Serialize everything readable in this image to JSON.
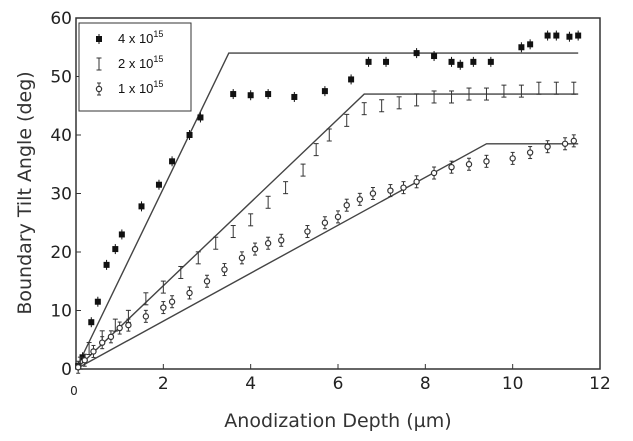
{
  "chart_data": {
    "type": "scatter",
    "title": "",
    "xlabel": "Anodization Depth (µm)",
    "ylabel": "Boundary Tilt Angle (deg)",
    "xlim": [
      0,
      12
    ],
    "ylim": [
      0,
      60
    ],
    "x_ticks": [
      "0",
      "2",
      "4",
      "6",
      "8",
      "10",
      "12"
    ],
    "y_ticks": [
      "0",
      "10",
      "20",
      "30",
      "40",
      "50",
      "60"
    ],
    "grid": false,
    "legend_position": "top-left",
    "series": [
      {
        "name_base": "4 x 10",
        "name_exp": "15",
        "marker": "filled-square",
        "color": "#111111",
        "points": [
          [
            0.05,
            0.5
          ],
          [
            0.15,
            2.0
          ],
          [
            0.35,
            8.0
          ],
          [
            0.5,
            11.5
          ],
          [
            0.7,
            17.8
          ],
          [
            0.9,
            20.5
          ],
          [
            1.05,
            23.0
          ],
          [
            1.5,
            27.8
          ],
          [
            1.9,
            31.5
          ],
          [
            2.2,
            35.5
          ],
          [
            2.6,
            40.0
          ],
          [
            2.85,
            43.0
          ],
          [
            3.6,
            47.0
          ],
          [
            4.0,
            46.8
          ],
          [
            4.4,
            47.0
          ],
          [
            5.0,
            46.5
          ],
          [
            5.7,
            47.5
          ],
          [
            6.3,
            49.5
          ],
          [
            6.7,
            52.5
          ],
          [
            7.1,
            52.5
          ],
          [
            7.8,
            54.0
          ],
          [
            8.2,
            53.5
          ],
          [
            8.6,
            52.5
          ],
          [
            8.8,
            52.0
          ],
          [
            9.1,
            52.5
          ],
          [
            9.5,
            52.5
          ],
          [
            10.2,
            55.0
          ],
          [
            10.4,
            55.5
          ],
          [
            10.8,
            57.0
          ],
          [
            11.0,
            57.0
          ],
          [
            11.3,
            56.8
          ],
          [
            11.5,
            57.0
          ]
        ],
        "fit_line": [
          [
            0,
            0
          ],
          [
            3.5,
            54
          ],
          [
            11.5,
            54
          ]
        ]
      },
      {
        "name_base": "2 x 10",
        "name_exp": "15",
        "marker": "error-bar",
        "color": "#333333",
        "points": [
          [
            0.1,
            1.0
          ],
          [
            0.3,
            3.5
          ],
          [
            0.6,
            5.5
          ],
          [
            0.9,
            7.5
          ],
          [
            1.2,
            9.0
          ],
          [
            1.6,
            12.0
          ],
          [
            2.0,
            14.0
          ],
          [
            2.4,
            16.5
          ],
          [
            2.8,
            19.0
          ],
          [
            3.2,
            21.5
          ],
          [
            3.6,
            23.5
          ],
          [
            4.0,
            25.5
          ],
          [
            4.4,
            28.5
          ],
          [
            4.8,
            31.0
          ],
          [
            5.2,
            34.0
          ],
          [
            5.5,
            37.5
          ],
          [
            5.8,
            40.0
          ],
          [
            6.2,
            42.5
          ],
          [
            6.6,
            44.5
          ],
          [
            7.0,
            45.0
          ],
          [
            7.4,
            45.5
          ],
          [
            7.8,
            46.0
          ],
          [
            8.2,
            46.5
          ],
          [
            8.6,
            46.5
          ],
          [
            9.0,
            47.0
          ],
          [
            9.4,
            47.0
          ],
          [
            9.8,
            47.5
          ],
          [
            10.2,
            47.5
          ],
          [
            10.6,
            48.0
          ],
          [
            11.0,
            48.0
          ],
          [
            11.4,
            48.0
          ]
        ],
        "fit_line": [
          [
            0,
            0
          ],
          [
            6.6,
            47
          ],
          [
            11.5,
            47
          ]
        ]
      },
      {
        "name_base": "1 x 10",
        "name_exp": "15",
        "marker": "open-circle",
        "color": "#333333",
        "points": [
          [
            0.05,
            0.3
          ],
          [
            0.2,
            1.5
          ],
          [
            0.4,
            3.0
          ],
          [
            0.6,
            4.5
          ],
          [
            0.8,
            5.5
          ],
          [
            1.0,
            7.0
          ],
          [
            1.2,
            7.5
          ],
          [
            1.6,
            9.0
          ],
          [
            2.0,
            10.5
          ],
          [
            2.2,
            11.5
          ],
          [
            2.6,
            13.0
          ],
          [
            3.0,
            15.0
          ],
          [
            3.4,
            17.0
          ],
          [
            3.8,
            19.0
          ],
          [
            4.1,
            20.5
          ],
          [
            4.4,
            21.5
          ],
          [
            4.7,
            22.0
          ],
          [
            5.3,
            23.5
          ],
          [
            5.7,
            25.0
          ],
          [
            6.0,
            26.0
          ],
          [
            6.2,
            28.0
          ],
          [
            6.5,
            29.0
          ],
          [
            6.8,
            30.0
          ],
          [
            7.2,
            30.5
          ],
          [
            7.5,
            31.0
          ],
          [
            7.8,
            32.0
          ],
          [
            8.2,
            33.5
          ],
          [
            8.6,
            34.5
          ],
          [
            9.0,
            35.0
          ],
          [
            9.4,
            35.5
          ],
          [
            10.0,
            36.0
          ],
          [
            10.4,
            37.0
          ],
          [
            10.8,
            38.0
          ],
          [
            11.2,
            38.5
          ],
          [
            11.4,
            39.0
          ]
        ],
        "fit_line": [
          [
            0,
            0
          ],
          [
            9.4,
            38.5
          ],
          [
            11.5,
            38.5
          ]
        ]
      }
    ]
  }
}
